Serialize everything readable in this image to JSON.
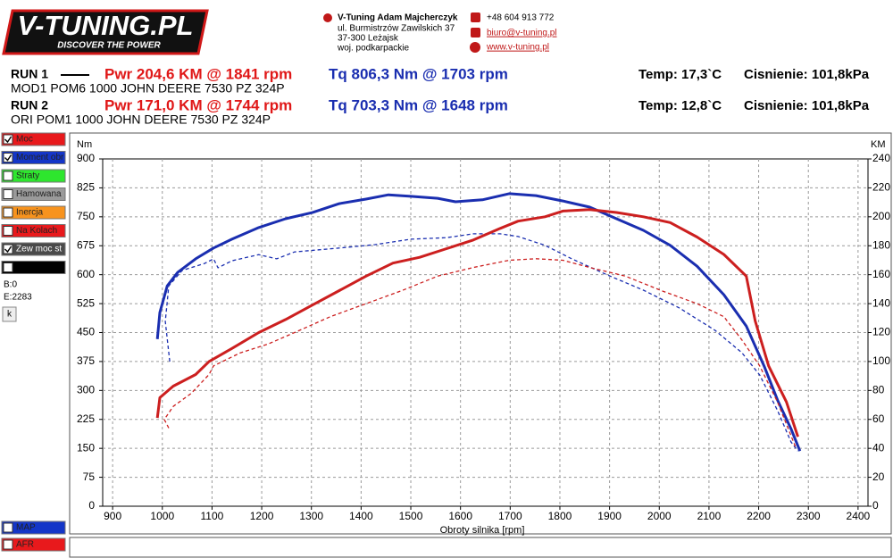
{
  "header": {
    "logo": "V-TUNING.PL",
    "slogan": "DISCOVER THE POWER",
    "company": "V-Tuning Adam Majcherczyk",
    "address": [
      "ul. Burmistrzów Zawilskich 37",
      "37-300 Leżajsk",
      "woj. podkarpackie"
    ],
    "phone": "+48 604 913 772",
    "email": "biuro@v-tuning.pl",
    "www": "www.v-tuning.pl"
  },
  "runs": [
    {
      "label": "RUN 1",
      "power": "Pwr  204,6 KM @ 1841 rpm",
      "torque": "Tq 806,3 Nm @ 1703 rpm",
      "temp": "Temp: 17,3`C",
      "pressure": "Cisnienie: 101,8kPa",
      "description": "MOD1 POM6 1000 JOHN DEERE 7530  PZ 324P"
    },
    {
      "label": "RUN 2",
      "power": "Pwr  171,0 KM @ 1744 rpm",
      "torque": "Tq 703,3 Nm @ 1648 rpm",
      "temp": "Temp: 12,8`C",
      "pressure": "Cisnienie: 101,8kPa",
      "description": "ORI POM1 1000 JOHN DEERE 7530  PZ 324P"
    }
  ],
  "sidebar": {
    "options": [
      {
        "label": "Moc",
        "checked": true,
        "color": "#e8191c"
      },
      {
        "label": "Moment obr",
        "checked": true,
        "color": "#1436c8"
      },
      {
        "label": "Straty",
        "checked": false,
        "color": "#2ee62e"
      },
      {
        "label": "Hamowana",
        "checked": false,
        "color": "#9a9a9a"
      },
      {
        "label": "Inercja",
        "checked": false,
        "color": "#f7931e"
      },
      {
        "label": "Na Kolach",
        "checked": false,
        "color": "#e8191c"
      },
      {
        "label": "Zew moc st",
        "checked": true,
        "color": "#4a4a4a"
      },
      {
        "checked": false,
        "color": "#000000"
      }
    ],
    "b": "B:0",
    "e": "E:2283",
    "button": "k",
    "bottom": [
      {
        "label": "MAP",
        "checked": false,
        "color": "#1436c8"
      },
      {
        "label": "AFR",
        "checked": false,
        "color": "#e8191c"
      }
    ]
  },
  "chart_data": {
    "type": "line",
    "xlabel": "Obroty silnika [rpm]",
    "ylabel": "Nm",
    "y2label": "KM",
    "xlim": [
      880,
      2420
    ],
    "xticks": [
      900,
      1000,
      1100,
      1200,
      1300,
      1400,
      1500,
      1600,
      1700,
      1800,
      1900,
      2000,
      2100,
      2200,
      2300,
      2400
    ],
    "ylim": [
      0,
      900
    ],
    "yticks": [
      0,
      75,
      150,
      225,
      300,
      375,
      450,
      525,
      600,
      675,
      750,
      825,
      900
    ],
    "y2lim": [
      0,
      240
    ],
    "y2ticks": [
      0,
      20,
      40,
      60,
      80,
      100,
      120,
      140,
      160,
      180,
      200,
      220,
      240
    ],
    "grid": true,
    "series": [
      {
        "color": "#1a2eb0",
        "dashed": false,
        "x": [
          990,
          995,
          1010,
          1031,
          1067,
          1103,
          1140,
          1194,
          1248,
          1302,
          1356,
          1410,
          1455,
          1500,
          1554,
          1590,
          1644,
          1698,
          1752,
          1806,
          1860,
          1914,
          1968,
          2022,
          2076,
          2130,
          2175,
          2211,
          2238,
          2265,
          2283
        ],
        "values": [
          433,
          502,
          571,
          606,
          641,
          669,
          692,
          722,
          745,
          761,
          784,
          796,
          807,
          803,
          798,
          789,
          794,
          810,
          805,
          791,
          775,
          745,
          715,
          676,
          622,
          548,
          467,
          363,
          275,
          201,
          143
        ]
      },
      {
        "color": "#1a2eb0",
        "dashed": true,
        "x": [
          1015,
          1006,
          1013,
          1040,
          1085,
          1103,
          1112,
          1140,
          1194,
          1230,
          1266,
          1356,
          1428,
          1500,
          1572,
          1626,
          1680,
          1716,
          1770,
          1824,
          1896,
          1968,
          2040,
          2112,
          2166,
          2202,
          2238,
          2265,
          2279
        ],
        "values": [
          375,
          479,
          571,
          611,
          629,
          641,
          618,
          636,
          652,
          641,
          659,
          669,
          678,
          692,
          696,
          706,
          706,
          699,
          676,
          641,
          599,
          560,
          514,
          456,
          398,
          340,
          248,
          167,
          143
        ]
      },
      {
        "color": "#cc1f1f",
        "dashed": false,
        "axis": "y2",
        "x": [
          990,
          995,
          1022,
          1067,
          1094,
          1140,
          1194,
          1248,
          1302,
          1356,
          1410,
          1464,
          1518,
          1572,
          1626,
          1680,
          1716,
          1770,
          1806,
          1860,
          1914,
          1968,
          2022,
          2076,
          2130,
          2175,
          2193,
          2220,
          2256,
          2279
        ],
        "values": [
          61,
          75,
          83,
          91,
          100,
          109,
          120,
          129,
          139,
          149,
          159,
          168,
          172,
          178,
          184,
          192,
          197,
          200,
          204,
          205,
          203,
          200,
          196,
          186,
          174,
          159,
          128,
          97,
          72,
          48
        ]
      },
      {
        "color": "#cc1f1f",
        "dashed": true,
        "axis": "y2",
        "x": [
          1013,
          1004,
          1022,
          1058,
          1094,
          1103,
          1157,
          1212,
          1266,
          1338,
          1410,
          1482,
          1554,
          1626,
          1698,
          1752,
          1806,
          1860,
          1932,
          2004,
          2076,
          2130,
          2166,
          2202,
          2238,
          2274
        ],
        "values": [
          54,
          60,
          69,
          78,
          91,
          97,
          106,
          112,
          120,
          131,
          140,
          149,
          159,
          165,
          170,
          171,
          170,
          165,
          159,
          149,
          140,
          131,
          115,
          97,
          72,
          41
        ]
      }
    ]
  }
}
